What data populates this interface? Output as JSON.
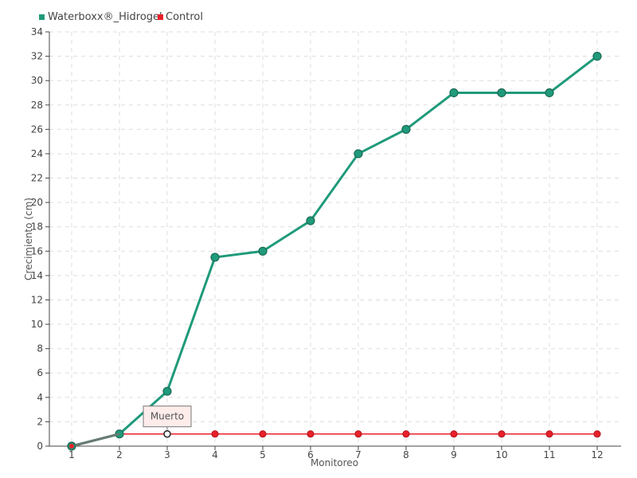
{
  "chart_data": {
    "type": "line",
    "xlabel": "Monitoreo",
    "ylabel": "Crecimiento (cm)",
    "categories": [
      "1",
      "2",
      "3",
      "4",
      "5",
      "6",
      "7",
      "8",
      "9",
      "10",
      "11",
      "12"
    ],
    "ylim": [
      0,
      34
    ],
    "yticks": [
      0,
      2,
      4,
      6,
      8,
      10,
      12,
      14,
      16,
      18,
      20,
      22,
      24,
      26,
      28,
      30,
      32,
      34
    ],
    "grid": true,
    "legend_position": "top-left",
    "series": [
      {
        "name": "Waterboxx®_Hidrogel",
        "color": "#1f9a7a",
        "values": [
          0,
          1,
          4.5,
          15.5,
          16,
          18.5,
          24,
          26,
          29,
          29,
          29,
          32
        ]
      },
      {
        "name": "Control",
        "color": "#e8202a",
        "values": [
          0,
          1,
          1,
          1,
          1,
          1,
          1,
          1,
          1,
          1,
          1,
          1
        ]
      }
    ],
    "annotations": [
      {
        "text": "Muerto",
        "series": "Control",
        "category": "3"
      }
    ]
  }
}
